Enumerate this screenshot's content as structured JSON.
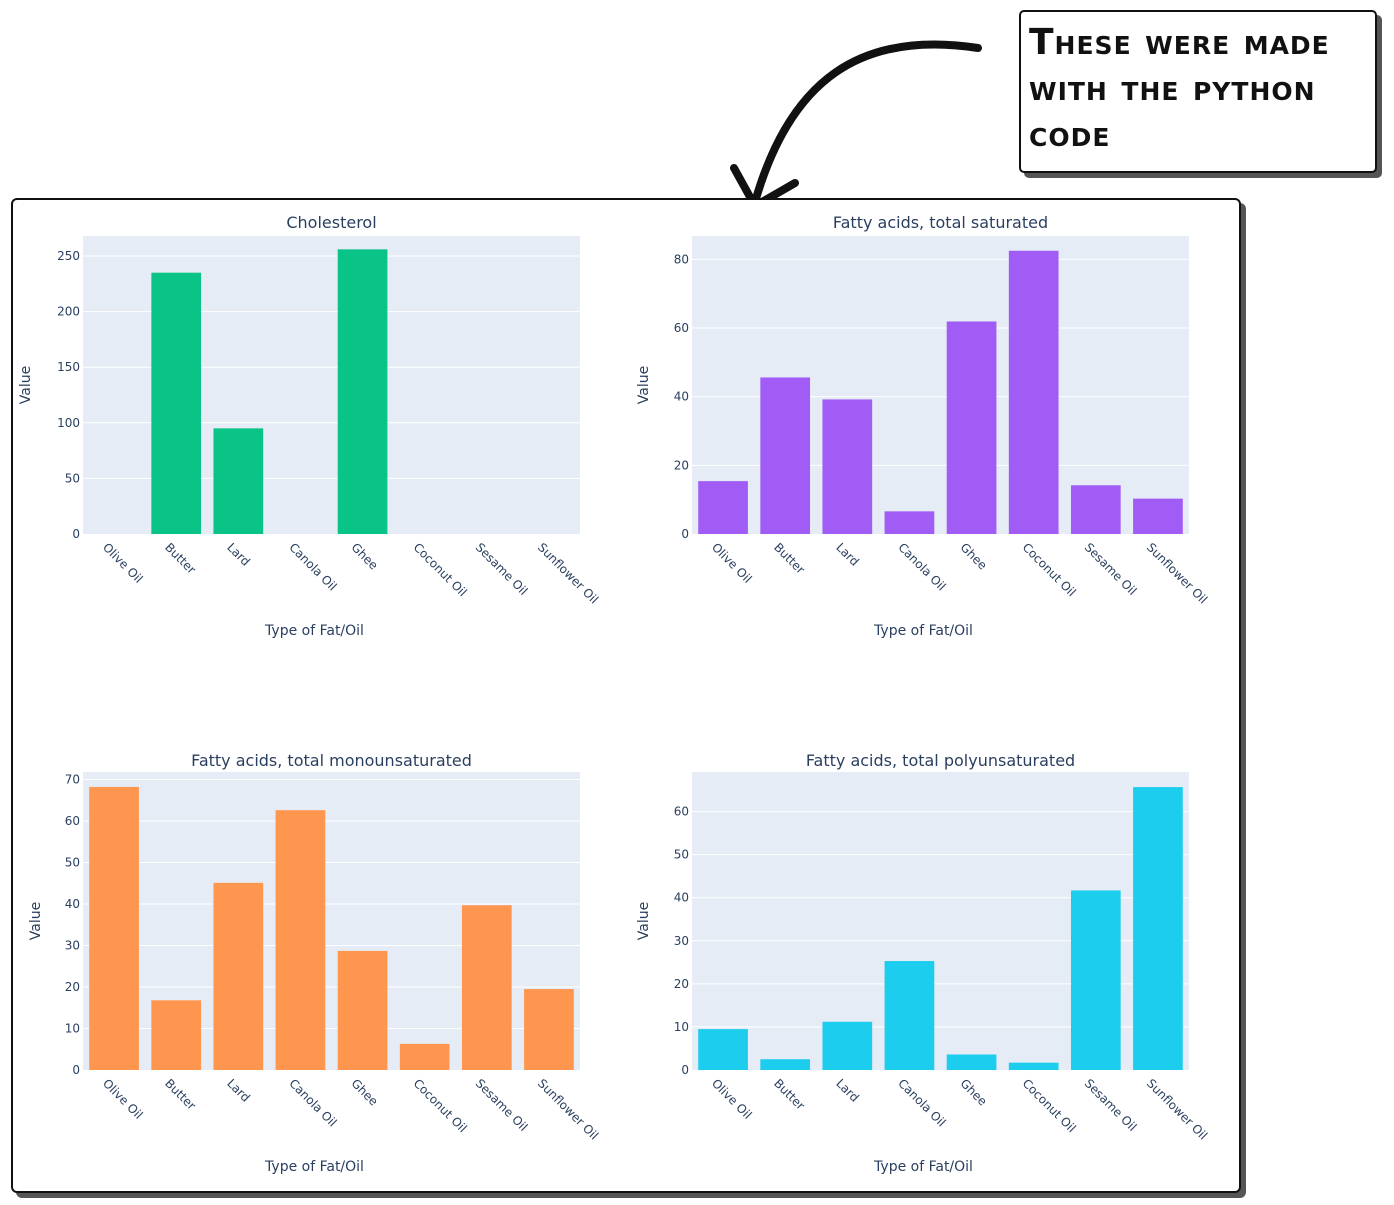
{
  "callout": {
    "lines": [
      "These were made",
      "with the python",
      "code"
    ]
  },
  "colors": {
    "plot_bg": "#e5ecf6",
    "grid": "#ffffff",
    "text": "#2a3f5f"
  },
  "chart_data": [
    {
      "type": "bar",
      "title": "Cholesterol",
      "xlabel": "Type of Fat/Oil",
      "ylabel": "Value",
      "categories": [
        "Olive Oil",
        "Butter",
        "Lard",
        "Canola Oil",
        "Ghee",
        "Coconut Oil",
        "Sesame Oil",
        "Sunflower Oil"
      ],
      "values": [
        0,
        235,
        95,
        0,
        256,
        0,
        0,
        0
      ],
      "ylim": [
        0,
        268
      ],
      "yticks": [
        0,
        50,
        100,
        150,
        200,
        250
      ],
      "color": "#0ac487",
      "grid": true
    },
    {
      "type": "bar",
      "title": "Fatty acids, total saturated",
      "xlabel": "Type of Fat/Oil",
      "ylabel": "Value",
      "categories": [
        "Olive Oil",
        "Butter",
        "Lard",
        "Canola Oil",
        "Ghee",
        "Coconut Oil",
        "Sesame Oil",
        "Sunflower Oil"
      ],
      "values": [
        15.4,
        45.6,
        39.2,
        6.6,
        61.9,
        82.5,
        14.2,
        10.3
      ],
      "ylim": [
        0,
        86.8
      ],
      "yticks": [
        0,
        20,
        40,
        60,
        80
      ],
      "color": "#a15cf6",
      "grid": true
    },
    {
      "type": "bar",
      "title": "Fatty acids, total monounsaturated",
      "xlabel": "Type of Fat/Oil",
      "ylabel": "Value",
      "categories": [
        "Olive Oil",
        "Butter",
        "Lard",
        "Canola Oil",
        "Ghee",
        "Coconut Oil",
        "Sesame Oil",
        "Sunflower Oil"
      ],
      "values": [
        68.2,
        16.8,
        45.1,
        62.6,
        28.7,
        6.3,
        39.7,
        19.5
      ],
      "ylim": [
        0,
        71.8
      ],
      "yticks": [
        0,
        10,
        20,
        30,
        40,
        50,
        60,
        70
      ],
      "color": "#fe9650",
      "grid": true
    },
    {
      "type": "bar",
      "title": "Fatty acids, total polyunsaturated",
      "xlabel": "Type of Fat/Oil",
      "ylabel": "Value",
      "categories": [
        "Olive Oil",
        "Butter",
        "Lard",
        "Canola Oil",
        "Ghee",
        "Coconut Oil",
        "Sesame Oil",
        "Sunflower Oil"
      ],
      "values": [
        9.5,
        2.5,
        11.2,
        25.3,
        3.6,
        1.7,
        41.7,
        65.7
      ],
      "ylim": [
        0,
        69.2
      ],
      "yticks": [
        0,
        10,
        20,
        30,
        40,
        50,
        60
      ],
      "color": "#1ccdee",
      "grid": true
    }
  ]
}
